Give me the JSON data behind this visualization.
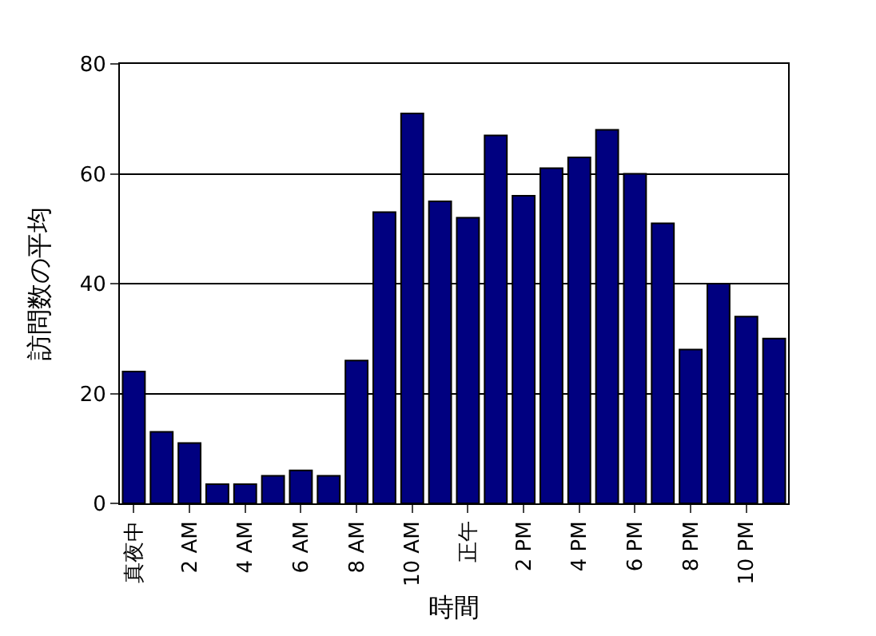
{
  "chart_data": {
    "type": "bar",
    "xlabel": "時間",
    "ylabel": "訪問数の平均",
    "categories": [
      "真夜中",
      null,
      "2 AM",
      null,
      "4 AM",
      null,
      "6 AM",
      null,
      "8 AM",
      null,
      "10 AM",
      null,
      "正午",
      null,
      "2 PM",
      null,
      "4 PM",
      null,
      "6 PM",
      null,
      "8 PM",
      null,
      "10 PM",
      null
    ],
    "values": [
      24,
      13,
      11,
      3.5,
      3.5,
      5,
      6,
      5,
      26,
      53,
      71,
      55,
      52,
      67,
      56,
      61,
      63,
      68,
      60,
      51,
      28,
      40,
      34,
      30
    ],
    "color": "#000080",
    "ylim": [
      0,
      80
    ],
    "yticks": [
      0,
      20,
      40,
      60,
      80
    ],
    "grid": "y"
  }
}
